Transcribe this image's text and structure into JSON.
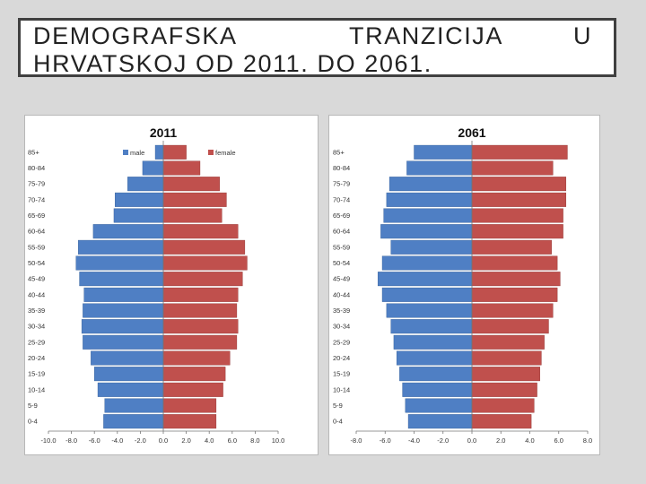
{
  "slide": {
    "title_line1_a": "DEMOGRAFSKA",
    "title_line1_b": "TRANZICIJA",
    "title_line1_c": "U",
    "title_line2": "HRVATSKOJ OD 2011. DO 2061."
  },
  "colors": {
    "male": "#4f7fc4",
    "female": "#c0504d",
    "background": "#d9d9d9"
  },
  "chart_data": [
    {
      "type": "bar",
      "orientation": "horizontal-pyramid",
      "title": "2011",
      "categories": [
        "85+",
        "80-84",
        "75-79",
        "70-74",
        "65-69",
        "60-64",
        "55-59",
        "50-54",
        "45-49",
        "40-44",
        "35-39",
        "30-34",
        "25-29",
        "20-24",
        "15-19",
        "10-14",
        "5-9",
        "0-4"
      ],
      "series": [
        {
          "name": "male",
          "values": [
            -0.7,
            -1.8,
            -3.1,
            -4.2,
            -4.3,
            -6.1,
            -7.4,
            -7.6,
            -7.3,
            -6.9,
            -7.0,
            -7.1,
            -7.0,
            -6.3,
            -6.0,
            -5.7,
            -5.1,
            -5.2
          ]
        },
        {
          "name": "female",
          "values": [
            2.0,
            3.2,
            4.9,
            5.5,
            5.1,
            6.5,
            7.1,
            7.3,
            6.9,
            6.5,
            6.4,
            6.5,
            6.4,
            5.8,
            5.4,
            5.2,
            4.6,
            4.6
          ]
        }
      ],
      "xticks": [
        "-10.0",
        "-8.0",
        "-6.0",
        "-4.0",
        "-2.0",
        "0.0",
        "2.0",
        "4.0",
        "6.0",
        "8.0",
        "10.0"
      ],
      "xlim": [
        -10,
        10
      ],
      "legend": "top"
    },
    {
      "type": "bar",
      "orientation": "horizontal-pyramid",
      "title": "2061",
      "categories": [
        "85+",
        "80-84",
        "75-79",
        "70-74",
        "65-69",
        "60-64",
        "55-59",
        "50-54",
        "45-49",
        "40-44",
        "35-39",
        "30-34",
        "25-29",
        "20-24",
        "15-19",
        "10-14",
        "5-9",
        "0-4"
      ],
      "series": [
        {
          "name": "male",
          "values": [
            -4.0,
            -4.5,
            -5.7,
            -5.9,
            -6.1,
            -6.3,
            -5.6,
            -6.2,
            -6.5,
            -6.2,
            -5.9,
            -5.6,
            -5.4,
            -5.2,
            -5.0,
            -4.8,
            -4.6,
            -4.4
          ]
        },
        {
          "name": "female",
          "values": [
            6.6,
            5.6,
            6.5,
            6.5,
            6.3,
            6.3,
            5.5,
            5.9,
            6.1,
            5.9,
            5.6,
            5.3,
            5.0,
            4.8,
            4.7,
            4.5,
            4.3,
            4.1
          ]
        }
      ],
      "xticks": [
        "-8.0",
        "-6.0",
        "-4.0",
        "-2.0",
        "0.0",
        "2.0",
        "4.0",
        "6.0",
        "8.0"
      ],
      "xlim": [
        -8,
        8
      ]
    }
  ]
}
